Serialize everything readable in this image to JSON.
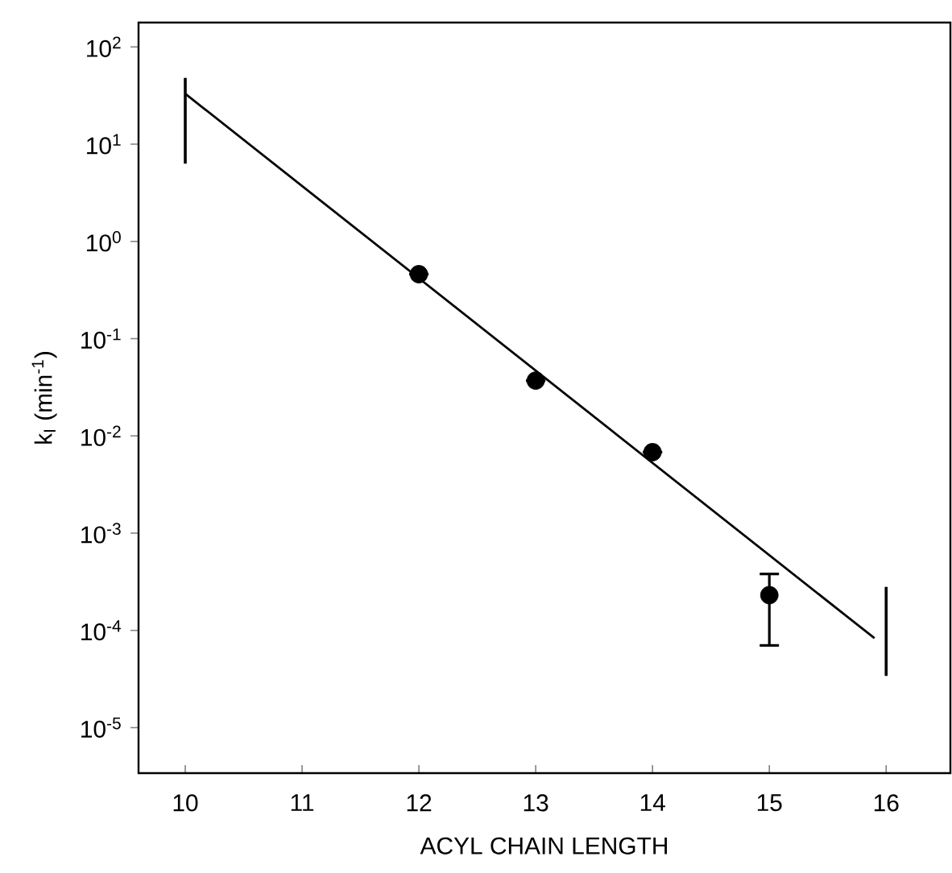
{
  "chart_data": {
    "type": "scatter",
    "xlabel": "ACYL CHAIN LENGTH",
    "ylabel": "k$_{I}$  (min$^{-1}$)",
    "log": "y",
    "xlim": [
      9.6,
      16.55
    ],
    "xticks": [
      10,
      11,
      12,
      13,
      14,
      15,
      16
    ],
    "ylim": [
      3.4e-06,
      178
    ],
    "yticks": [
      {
        "value": 100,
        "label": "10$^{2}$"
      },
      {
        "value": 10,
        "label": "10$^{1}$"
      },
      {
        "value": 1,
        "label": "10$^{0}$"
      },
      {
        "value": 0.1,
        "label": "10$^{-1}$"
      },
      {
        "value": 0.01,
        "label": "10$^{-2}$"
      },
      {
        "value": 0.001,
        "label": "10$^{-3}$"
      },
      {
        "value": 0.0001,
        "label": "10$^{-4}$"
      },
      {
        "value": 1e-05,
        "label": "10$^{-5}$"
      }
    ],
    "grid": false,
    "series": [
      {
        "type": "line",
        "color": "#000000",
        "marker": "none",
        "x": [
          10,
          15.9
        ],
        "values": [
          33,
          8.3e-05
        ]
      },
      {
        "color": "#000000",
        "marker": "circle",
        "x": [
          12,
          13,
          14,
          15
        ],
        "values": [
          0.46,
          0.037,
          0.0068,
          0.00023
        ],
        "errors": [
          null,
          null,
          null,
          [
            7e-05,
            0.00038
          ]
        ]
      },
      {
        "type": "line",
        "color": "#000000",
        "marker": "none",
        "x": [
          10,
          10
        ],
        "values": [
          6.3,
          48
        ]
      },
      {
        "type": "line",
        "color": "#000000",
        "marker": "none",
        "x": [
          16,
          16
        ],
        "values": [
          3.4e-05,
          0.00028
        ]
      }
    ]
  }
}
